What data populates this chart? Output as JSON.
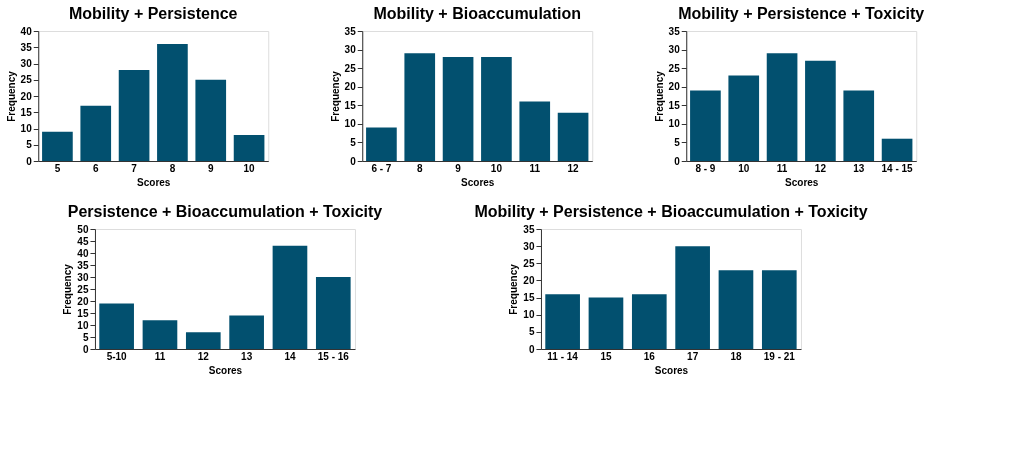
{
  "chart_data": [
    {
      "type": "bar",
      "title": "Mobility + Persistence",
      "xlabel": "Scores",
      "ylabel": "Frequency",
      "categories": [
        "5",
        "6",
        "7",
        "8",
        "9",
        "10"
      ],
      "values": [
        9,
        17,
        28,
        36,
        25,
        8
      ],
      "color": "#02506f",
      "ylim": [
        0,
        40
      ],
      "yticks": [
        0,
        5,
        10,
        15,
        20,
        25,
        30,
        35,
        40
      ],
      "grid": false
    },
    {
      "type": "bar",
      "title": "Mobility + Bioaccumulation",
      "xlabel": "Scores",
      "ylabel": "Frequency",
      "categories": [
        "6 - 7",
        "8",
        "9",
        "10",
        "11",
        "12"
      ],
      "values": [
        9,
        29,
        28,
        28,
        16,
        13
      ],
      "color": "#02506f",
      "ylim": [
        0,
        35
      ],
      "yticks": [
        0,
        5,
        10,
        15,
        20,
        25,
        30,
        35
      ],
      "grid": false
    },
    {
      "type": "bar",
      "title": "Mobility + Persistence + Toxicity",
      "xlabel": "Scores",
      "ylabel": "Frequency",
      "categories": [
        "8 - 9",
        "10",
        "11",
        "12",
        "13",
        "14 - 15"
      ],
      "values": [
        19,
        23,
        29,
        27,
        19,
        6
      ],
      "color": "#02506f",
      "ylim": [
        0,
        35
      ],
      "yticks": [
        0,
        5,
        10,
        15,
        20,
        25,
        30,
        35
      ],
      "grid": false
    },
    {
      "type": "bar",
      "title": "Persistence + Bioaccumulation + Toxicity",
      "xlabel": "Scores",
      "ylabel": "Frequency",
      "categories": [
        "5-10",
        "11",
        "12",
        "13",
        "14",
        "15 - 16"
      ],
      "values": [
        19,
        12,
        7,
        14,
        43,
        30
      ],
      "color": "#02506f",
      "ylim": [
        0,
        50
      ],
      "yticks": [
        0,
        5,
        10,
        15,
        20,
        25,
        30,
        35,
        40,
        45,
        50
      ],
      "grid": false
    },
    {
      "type": "bar",
      "title": "Mobility + Persistence + Bioaccumulation + Toxicity",
      "xlabel": "Scores",
      "ylabel": "Frequency",
      "categories": [
        "11 - 14",
        "15",
        "16",
        "17",
        "18",
        "19 - 21"
      ],
      "values": [
        16,
        15,
        16,
        30,
        23,
        23
      ],
      "color": "#02506f",
      "ylim": [
        0,
        35
      ],
      "yticks": [
        0,
        5,
        10,
        15,
        20,
        25,
        30,
        35
      ],
      "grid": false
    }
  ]
}
